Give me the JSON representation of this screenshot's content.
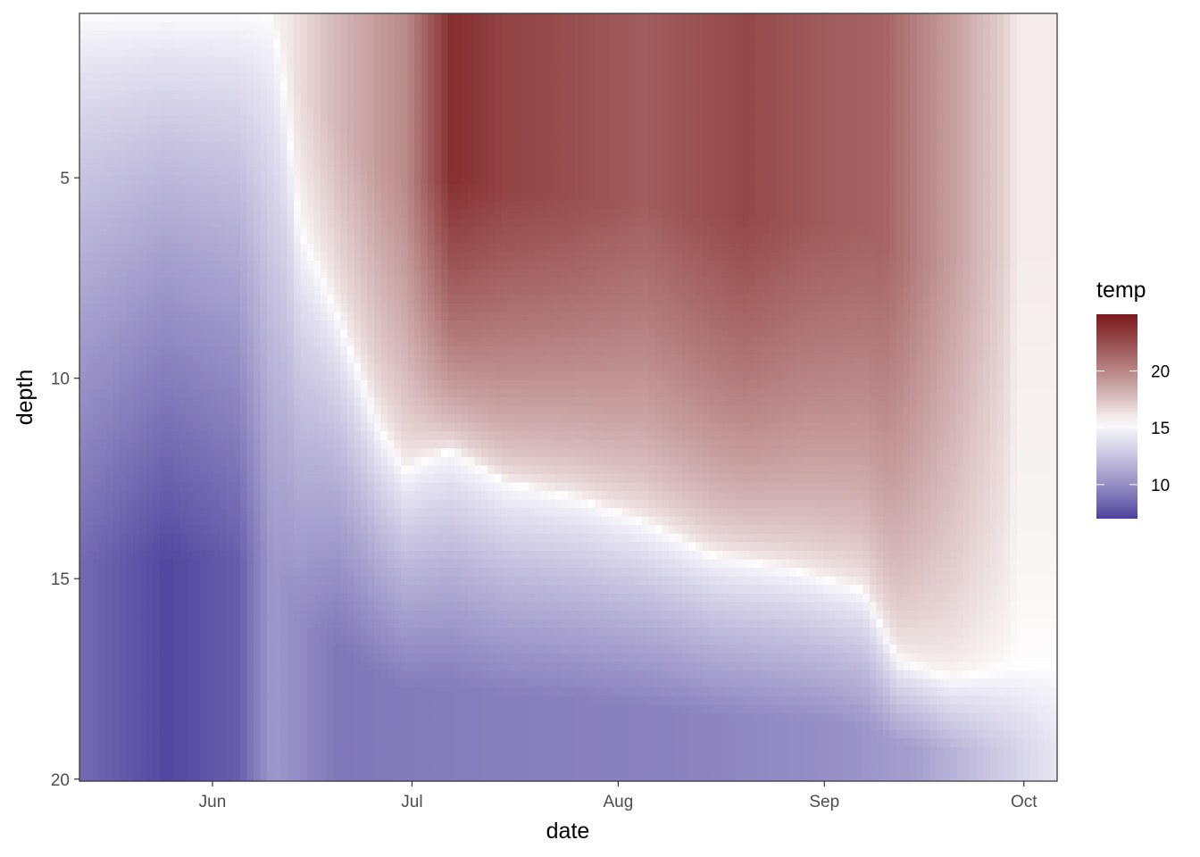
{
  "chart_data": {
    "type": "heatmap",
    "xlabel": "date",
    "ylabel": "depth",
    "x_ticks": [
      {
        "date": "2021-06-01",
        "label": "Jun"
      },
      {
        "date": "2021-07-01",
        "label": "Jul"
      },
      {
        "date": "2021-08-01",
        "label": "Aug"
      },
      {
        "date": "2021-09-01",
        "label": "Sep"
      },
      {
        "date": "2021-10-01",
        "label": "Oct"
      }
    ],
    "xlim": [
      "2021-05-12",
      "2021-10-06"
    ],
    "y_ticks": [
      5,
      10,
      15,
      20
    ],
    "ylim": [
      0.9,
      20.05
    ],
    "y_reversed": true,
    "grid": false,
    "legend": {
      "title": "temp",
      "position": "right",
      "range": [
        7,
        25
      ],
      "ticks": [
        10,
        15,
        20
      ],
      "colors": {
        "low": "#4B3E9B",
        "mid": "#FFFFFF",
        "high": "#7A1A1C"
      },
      "midpoint": 15.5
    },
    "surface_depth_by_date": [
      {
        "date": "2021-05-12",
        "depth": 0.9
      },
      {
        "date": "2021-06-10",
        "depth": 0.9
      },
      {
        "date": "2021-06-12",
        "depth": 3.0
      },
      {
        "date": "2021-06-14",
        "depth": 6.2
      },
      {
        "date": "2021-06-20",
        "depth": 8.5
      },
      {
        "date": "2021-06-26",
        "depth": 11.2
      },
      {
        "date": "2021-06-30",
        "depth": 12.3
      },
      {
        "date": "2021-07-03",
        "depth": 12.0
      },
      {
        "date": "2021-07-07",
        "depth": 11.8
      },
      {
        "date": "2021-07-15",
        "depth": 12.6
      },
      {
        "date": "2021-07-26",
        "depth": 13.0
      },
      {
        "date": "2021-08-05",
        "depth": 13.6
      },
      {
        "date": "2021-08-15",
        "depth": 14.4
      },
      {
        "date": "2021-08-28",
        "depth": 14.8
      },
      {
        "date": "2021-09-07",
        "depth": 15.3
      },
      {
        "date": "2021-09-12",
        "depth": 17.0
      },
      {
        "date": "2021-09-20",
        "depth": 17.5
      },
      {
        "date": "2021-09-30",
        "depth": 17.2
      }
    ],
    "surface_temp_by_date": [
      {
        "date": "2021-05-12",
        "temp": 10.5
      },
      {
        "date": "2021-05-25",
        "temp": 12.5
      },
      {
        "date": "2021-06-05",
        "temp": 14.5
      },
      {
        "date": "2021-06-10",
        "temp": 15.5
      },
      {
        "date": "2021-06-20",
        "temp": 18.0
      },
      {
        "date": "2021-06-30",
        "temp": 19.8
      },
      {
        "date": "2021-07-07",
        "temp": 24.0
      },
      {
        "date": "2021-07-15",
        "temp": 23.0
      },
      {
        "date": "2021-07-25",
        "temp": 22.5
      },
      {
        "date": "2021-08-05",
        "temp": 21.8
      },
      {
        "date": "2021-08-20",
        "temp": 22.8
      },
      {
        "date": "2021-08-30",
        "temp": 22.0
      },
      {
        "date": "2021-09-10",
        "temp": 21.5
      },
      {
        "date": "2021-09-20",
        "temp": 19.0
      },
      {
        "date": "2021-09-28",
        "temp": 17.0
      },
      {
        "date": "2021-10-01",
        "temp": 15.5
      },
      {
        "date": "2021-10-06",
        "temp": 14.0
      }
    ],
    "bottom_temp_by_date": [
      {
        "date": "2021-05-12",
        "temp": 8.5
      },
      {
        "date": "2021-05-25",
        "temp": 7.2
      },
      {
        "date": "2021-06-05",
        "temp": 8.0
      },
      {
        "date": "2021-06-10",
        "temp": 10.5
      },
      {
        "date": "2021-06-20",
        "temp": 9.0
      },
      {
        "date": "2021-07-10",
        "temp": 9.3
      },
      {
        "date": "2021-08-10",
        "temp": 9.5
      },
      {
        "date": "2021-09-01",
        "temp": 10.0
      },
      {
        "date": "2021-09-15",
        "temp": 10.8
      },
      {
        "date": "2021-09-25",
        "temp": 12.5
      },
      {
        "date": "2021-10-06",
        "temp": 14.2
      }
    ]
  }
}
